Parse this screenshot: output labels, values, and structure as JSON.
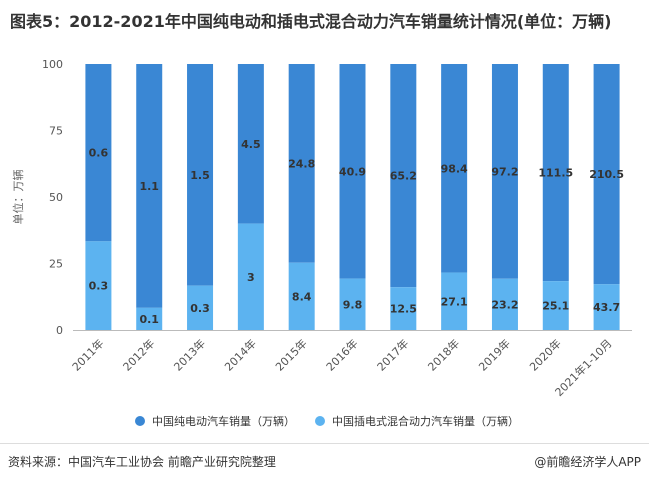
{
  "title": "图表5：2012-2021年中国纯电动和插电式混合动力汽车销量统计情况(单位：万辆)",
  "source": "资料来源：中国汽车工业协会 前瞻产业研究院整理",
  "brand": "@前瞻经济学人APP",
  "chart_data": {
    "type": "bar",
    "stacked": "percent",
    "ylabel": "单位：万辆",
    "ylim": [
      0,
      100
    ],
    "yticks": [
      0,
      25,
      50,
      75,
      100
    ],
    "categories": [
      "2011年",
      "2012年",
      "2013年",
      "2014年",
      "2015年",
      "2016年",
      "2017年",
      "2018年",
      "2019年",
      "2020年",
      "2021年1-10月"
    ],
    "series": [
      {
        "name": "中国插电式混合动力汽车销量（万辆）",
        "color": "#5cb3f0",
        "values": [
          0.3,
          0.1,
          0.3,
          3,
          8.4,
          9.8,
          12.5,
          27.1,
          23.2,
          25.1,
          43.7
        ],
        "labels": [
          "0.3",
          "0.1",
          "0.3",
          "3",
          "8.4",
          "9.8",
          "12.5",
          "27.1",
          "23.2",
          "25.1",
          "43.7"
        ]
      },
      {
        "name": "中国纯电动汽车销量（万辆）",
        "color": "#3a87d4",
        "values": [
          0.6,
          1.1,
          1.5,
          4.5,
          24.8,
          40.9,
          65.2,
          98.4,
          97.2,
          111.5,
          210.5
        ],
        "labels": [
          "0.6",
          "1.1",
          "1.5",
          "4.5",
          "24.8",
          "40.9",
          "65.2",
          "98.4",
          "97.2",
          "111.5",
          "210.5"
        ]
      }
    ],
    "legend": [
      {
        "name": "中国纯电动汽车销量（万辆）",
        "color": "#3a87d4"
      },
      {
        "name": "中国插电式混合动力汽车销量（万辆）",
        "color": "#5cb3f0"
      }
    ],
    "legend_position": "bottom",
    "grid": false
  }
}
